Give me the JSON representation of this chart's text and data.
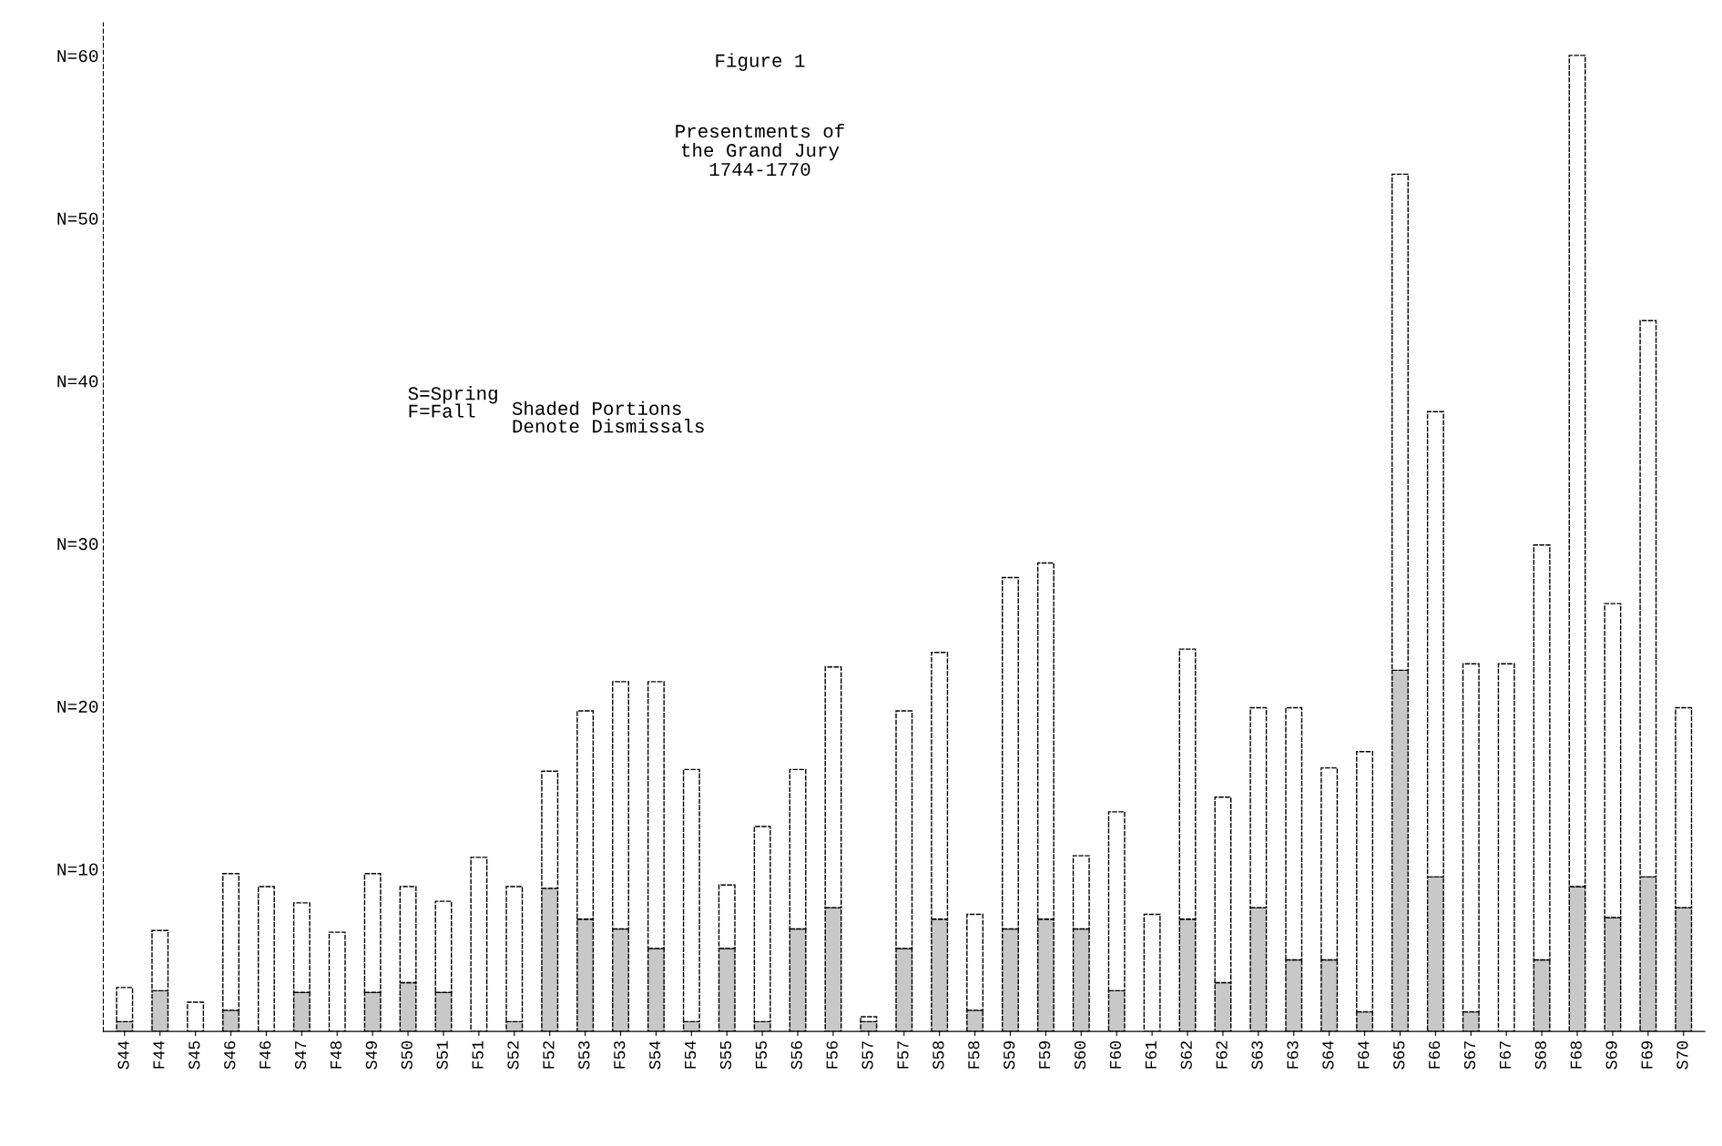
{
  "chart_data": {
    "type": "bar",
    "stacked": true,
    "title": "Figure 1",
    "subtitle": "Presentments of\nthe Grand Jury\n1744-1770",
    "annotations": [
      "S=Spring\nF=Fall",
      "Shaded Portions\nDenote Dismissals"
    ],
    "categories": [
      "S44",
      "F44",
      "S45",
      "S46",
      "F46",
      "S47",
      "F48",
      "S49",
      "S50",
      "S51",
      "F51",
      "S52",
      "F52",
      "S53",
      "F53",
      "S54",
      "F54",
      "S55",
      "F55",
      "S56",
      "F56",
      "S57",
      "F57",
      "S58",
      "F58",
      "S59",
      "F59",
      "S60",
      "F60",
      "F61",
      "S62",
      "F62",
      "S63",
      "F63",
      "S64",
      "F64",
      "S65",
      "F66",
      "S67",
      "F67",
      "S68",
      "F68",
      "S69",
      "F69",
      "S70"
    ],
    "series": [
      {
        "color": "#c8c8c8",
        "values": [
          0.6,
          2.5,
          0,
          1.3,
          0,
          2.4,
          0,
          2.4,
          3.0,
          2.4,
          0,
          0.6,
          8.8,
          6.9,
          6.3,
          5.1,
          0.6,
          5.1,
          0.6,
          6.3,
          7.6,
          0.6,
          5.1,
          6.9,
          1.3,
          6.3,
          6.9,
          6.3,
          2.5,
          0,
          6.9,
          3.0,
          7.6,
          4.4,
          4.4,
          1.2,
          22.2,
          9.5,
          1.2,
          0,
          4.4,
          8.9,
          7.0,
          9.5,
          7.6
        ]
      },
      {
        "color": "#ffffff",
        "values": [
          2.1,
          3.7,
          1.8,
          8.4,
          8.9,
          5.5,
          6.1,
          7.3,
          5.9,
          5.6,
          10.7,
          8.3,
          7.2,
          12.8,
          15.2,
          16.4,
          15.5,
          3.9,
          12.0,
          9.8,
          14.8,
          0.3,
          14.6,
          16.4,
          5.9,
          21.6,
          21.9,
          4.5,
          11.0,
          7.2,
          16.6,
          11.4,
          12.3,
          15.5,
          11.8,
          16.0,
          30.5,
          28.6,
          21.4,
          22.6,
          25.5,
          51.1,
          19.3,
          34.2,
          12.3
        ]
      }
    ],
    "ylim": [
      0,
      62
    ],
    "yticks": [
      {
        "value": 10,
        "label": "N=10"
      },
      {
        "value": 20,
        "label": "N=20"
      },
      {
        "value": 30,
        "label": "N=30"
      },
      {
        "value": 40,
        "label": "N=40"
      },
      {
        "value": 50,
        "label": "N=50"
      },
      {
        "value": 60,
        "label": "N=60"
      }
    ],
    "grid": false,
    "legend": false
  }
}
